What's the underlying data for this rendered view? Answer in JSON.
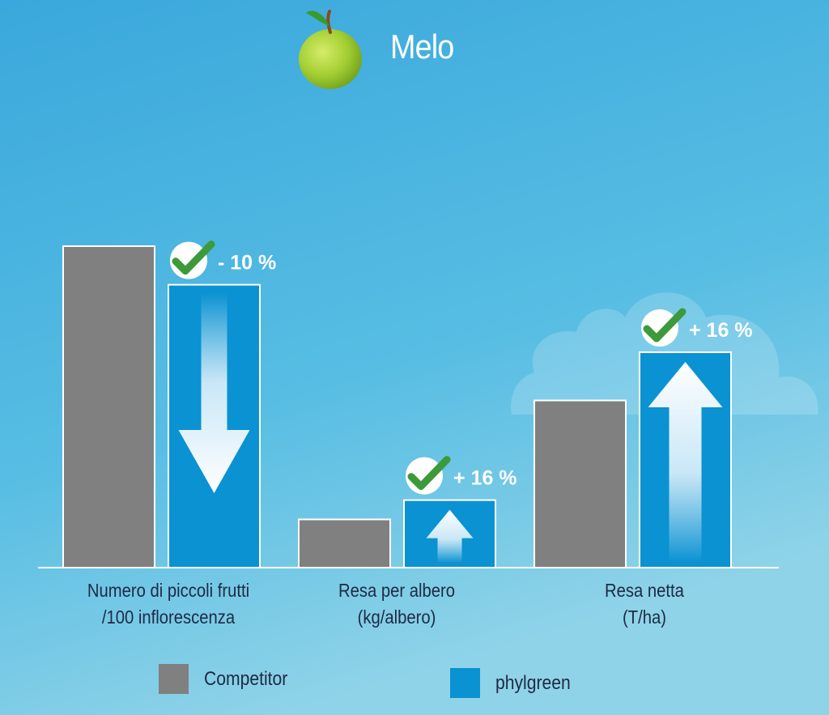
{
  "title": "Melo",
  "colors": {
    "competitor": "#808080",
    "phylgreen": "#0a92d2",
    "bar_border": "#ffffff",
    "check": "#3d9a3a",
    "background_top": "#3aa8dc",
    "background_bottom": "#86cfe6"
  },
  "icons": [
    "apple-icon",
    "check-icon",
    "arrow-down-icon",
    "arrow-up-icon",
    "cloud-icon"
  ],
  "chart_data": {
    "type": "bar",
    "categories": [
      [
        "Numero di piccoli frutti",
        "/100 inflorescenza"
      ],
      [
        "Resa per albero",
        "(kg/albero)"
      ],
      [
        "Resa netta",
        "(T/ha)"
      ]
    ],
    "series": [
      {
        "name": "Competitor",
        "values": [
          100,
          15,
          52
        ]
      },
      {
        "name": "phylgreen",
        "values": [
          88,
          21,
          67
        ]
      }
    ],
    "annotations": [
      "- 10 %",
      "+ 16 %",
      "+ 16 %"
    ],
    "directions": [
      "down",
      "up",
      "up"
    ],
    "ylim": [
      0,
      100
    ],
    "grid": false,
    "legend": "bottom"
  }
}
